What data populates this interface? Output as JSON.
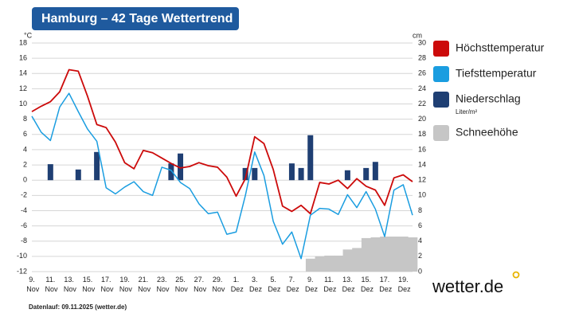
{
  "chart_data": {
    "type": "line",
    "title": "Hamburg – 42 Tage Wettertrend",
    "y_label": "°C",
    "y2_label": "cm",
    "categories": [
      "9. Nov",
      null,
      "11. Nov",
      null,
      "13. Nov",
      null,
      "15. Nov",
      null,
      "17. Nov",
      null,
      "19. Nov",
      null,
      "21. Nov",
      null,
      "23. Nov",
      null,
      "25. Nov",
      null,
      "27. Nov",
      null,
      "29. Nov",
      null,
      "1. Dez",
      null,
      "3. Dez",
      null,
      "5. Dez",
      null,
      "7. Dez",
      null,
      "9. Dez",
      null,
      "11. Dez",
      null,
      "13. Dez",
      null,
      "15. Dez",
      null,
      "17. Dez",
      null,
      "19. Dez",
      null
    ],
    "series": [
      {
        "name": "Höchsttemperatur",
        "color": "#cc0a0a",
        "values": [
          9.0,
          9.7,
          10.3,
          11.6,
          14.5,
          14.3,
          11.0,
          7.3,
          6.9,
          5.0,
          2.3,
          1.5,
          3.9,
          3.6,
          2.9,
          2.2,
          1.6,
          1.8,
          2.3,
          1.9,
          1.7,
          0.4,
          -2.1,
          0.2,
          5.7,
          4.8,
          1.4,
          -3.4,
          -4.1,
          -3.3,
          -4.4,
          -0.3,
          -0.5,
          0.0,
          -1.1,
          0.2,
          -0.8,
          -1.3,
          -3.3,
          0.3,
          0.7,
          -0.2
        ]
      },
      {
        "name": "Tiefsttemperatur",
        "color": "#1a9de0",
        "values": [
          8.4,
          6.3,
          5.2,
          9.6,
          11.4,
          9.0,
          6.7,
          5.1,
          -1.0,
          -1.8,
          -0.9,
          -0.2,
          -1.5,
          -2.0,
          1.7,
          1.3,
          -0.3,
          -1.1,
          -3.1,
          -4.4,
          -4.2,
          -7.1,
          -6.8,
          -2.0,
          3.7,
          0.6,
          -5.4,
          -8.4,
          -6.8,
          -10.3,
          -4.6,
          -3.7,
          -3.8,
          -4.5,
          -1.9,
          -3.6,
          -1.5,
          -3.8,
          -7.4,
          -1.3,
          -0.6,
          -4.6
        ]
      },
      {
        "name": "Niederschlag",
        "unit": "Liter/m²",
        "type": "bar",
        "color": "#1f3f73",
        "values": [
          null,
          null,
          2.1,
          null,
          null,
          1.4,
          null,
          3.7,
          null,
          null,
          null,
          null,
          null,
          null,
          null,
          2.2,
          3.5,
          null,
          null,
          null,
          null,
          null,
          null,
          1.6,
          1.6,
          null,
          null,
          null,
          2.2,
          1.6,
          5.9,
          null,
          null,
          null,
          1.3,
          null,
          1.6,
          2.4,
          null,
          null,
          null,
          null
        ]
      },
      {
        "name": "Schneehöhe",
        "type": "area",
        "axis": "y2",
        "color": "#c6c6c6",
        "values": [
          null,
          null,
          null,
          null,
          null,
          null,
          null,
          null,
          null,
          null,
          null,
          null,
          null,
          null,
          null,
          null,
          null,
          null,
          null,
          null,
          null,
          null,
          null,
          null,
          null,
          null,
          null,
          null,
          null,
          null,
          1.7,
          2.0,
          2.1,
          2.1,
          2.9,
          3.1,
          4.4,
          4.5,
          4.6,
          4.6,
          4.6,
          4.5
        ]
      }
    ],
    "ylim": [
      -12,
      18
    ],
    "yticks": [
      -12,
      -10,
      -8,
      -6,
      -4,
      -2,
      0,
      2,
      4,
      6,
      8,
      10,
      12,
      14,
      16,
      18
    ],
    "y2lim": [
      0,
      30
    ],
    "y2ticks": [
      0,
      2,
      4,
      6,
      8,
      10,
      12,
      14,
      16,
      18,
      20,
      22,
      24,
      26,
      28,
      30
    ],
    "grid": true
  },
  "footer": "Datenlauf: 09.11.2025 (wetter.de)",
  "logo": "wetter.de"
}
